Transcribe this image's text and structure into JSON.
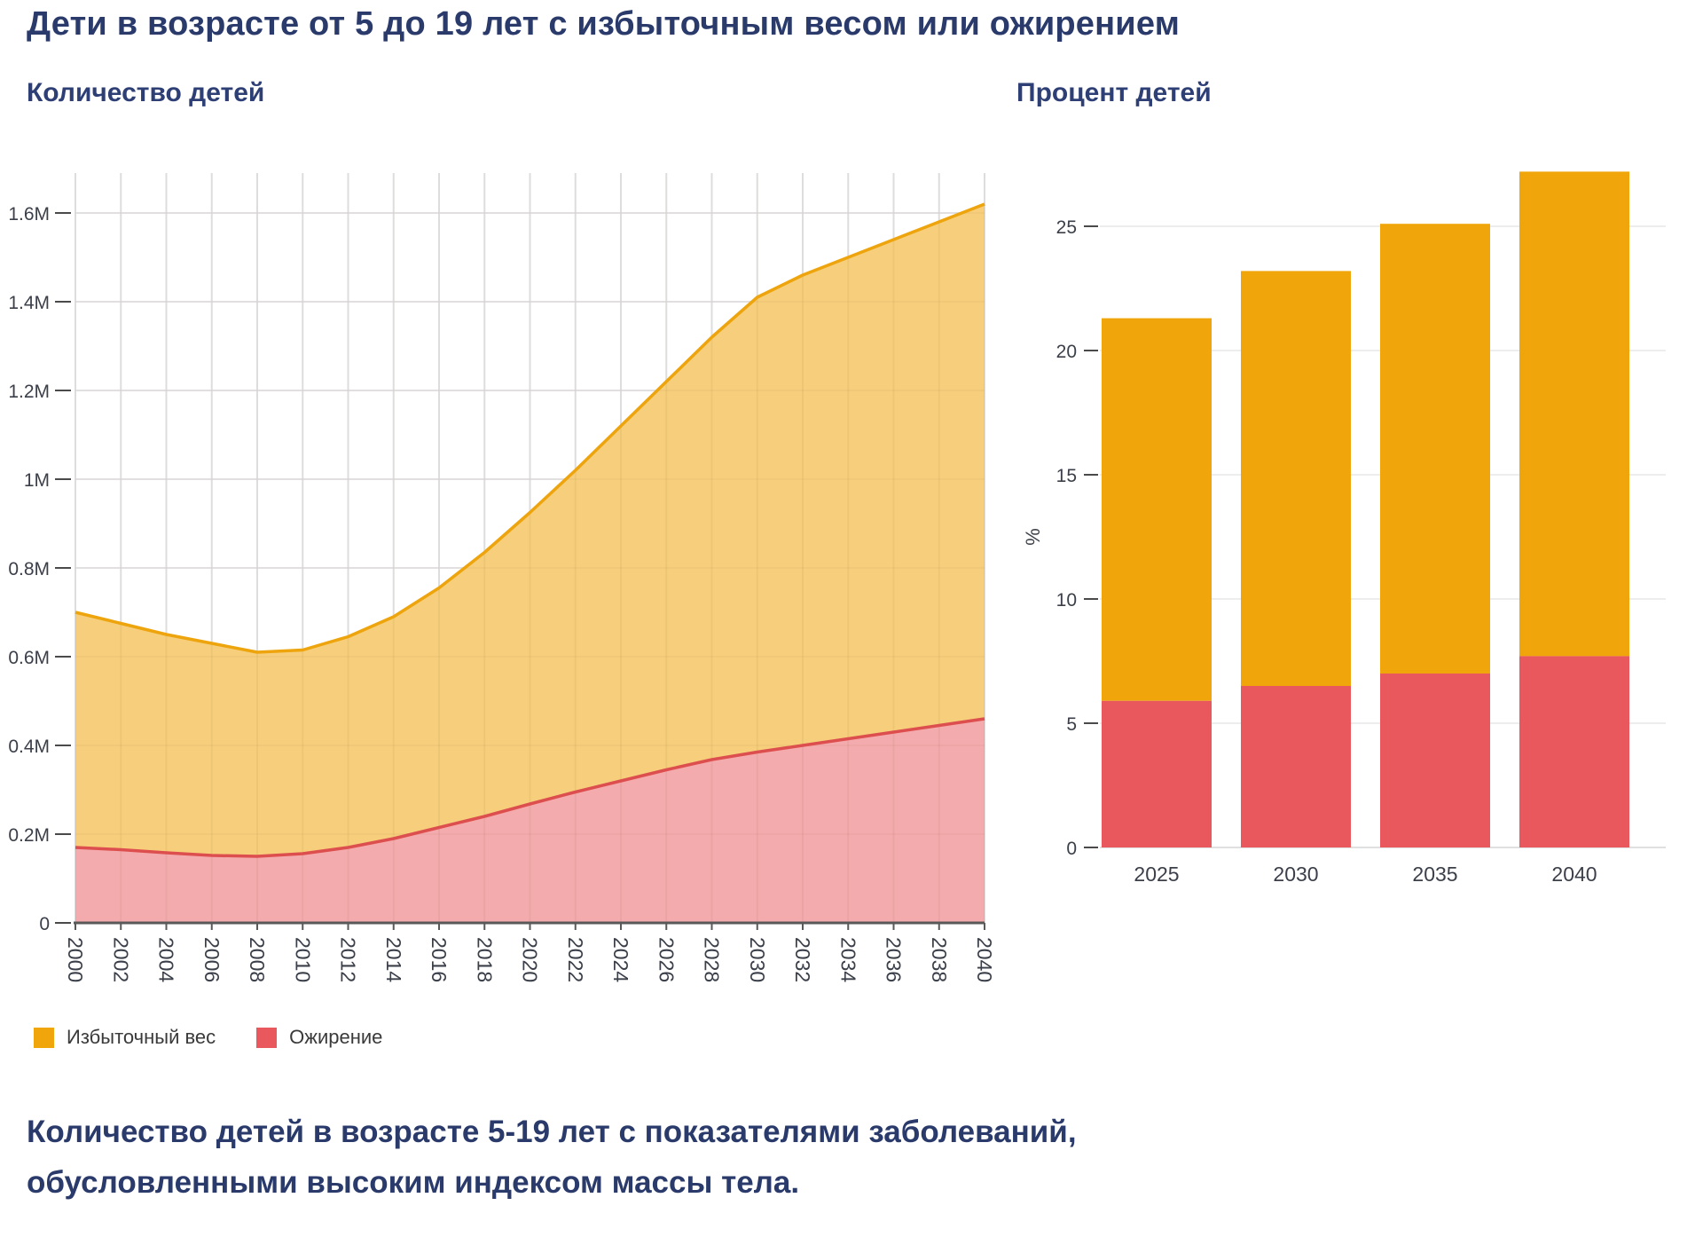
{
  "header": {
    "title": "Дети в возрасте от 5 до 19 лет с избыточным весом или ожирением"
  },
  "charts": {
    "left": {
      "subtitle": "Количество детей"
    },
    "right": {
      "subtitle": "Процент детей",
      "y_axis_label": "%"
    }
  },
  "legend": [
    {
      "label": "Избыточный вес",
      "color": "#F0A60A"
    },
    {
      "label": "Ожирение",
      "color": "#E8585C"
    }
  ],
  "caption": {
    "line1": "Количество детей в возрасте 5-19 лет с показателями заболеваний,",
    "line2": "обусловленными высоким индексом массы тела."
  },
  "chart_data": [
    {
      "type": "area",
      "title": "Количество детей",
      "stacked": true,
      "grid": true,
      "x": [
        2000,
        2002,
        2004,
        2006,
        2008,
        2010,
        2012,
        2014,
        2016,
        2018,
        2020,
        2022,
        2024,
        2026,
        2028,
        2030,
        2032,
        2034,
        2036,
        2038,
        2040
      ],
      "x_tick_labels": [
        "2000",
        "2002",
        "2004",
        "2006",
        "2008",
        "2010",
        "2012",
        "2014",
        "2016",
        "2018",
        "2020",
        "2022",
        "2024",
        "2026",
        "2028",
        "2030",
        "2032",
        "2034",
        "2036",
        "2038",
        "2040"
      ],
      "y_tick_values_millions": [
        0,
        0.2,
        0.4,
        0.6,
        0.8,
        1,
        1.2,
        1.4,
        1.6
      ],
      "y_tick_labels": [
        "0",
        "0.2M",
        "0.4M",
        "0.6M",
        "0.8M",
        "1M",
        "1.2M",
        "1.4M",
        "1.6M"
      ],
      "ylim_millions": [
        0,
        1.69
      ],
      "series": [
        {
          "name": "Ожирение",
          "color_line": "#DD4F4F",
          "color_fill": "#F4ABAD",
          "values_millions": [
            0.17,
            0.165,
            0.158,
            0.152,
            0.15,
            0.156,
            0.17,
            0.19,
            0.215,
            0.24,
            0.268,
            0.295,
            0.32,
            0.345,
            0.368,
            0.385,
            0.4,
            0.415,
            0.43,
            0.445,
            0.46
          ]
        },
        {
          "name": "Избыточный вес",
          "color_line": "#EDA40D",
          "color_fill": "#F7CF7C",
          "values_millions": [
            0.53,
            0.51,
            0.492,
            0.478,
            0.46,
            0.459,
            0.475,
            0.5,
            0.54,
            0.595,
            0.657,
            0.725,
            0.8,
            0.875,
            0.952,
            1.025,
            1.06,
            1.085,
            1.11,
            1.135,
            1.16
          ]
        }
      ],
      "stack_totals_millions": [
        0.7,
        0.675,
        0.65,
        0.63,
        0.61,
        0.615,
        0.645,
        0.69,
        0.755,
        0.835,
        0.925,
        1.02,
        1.12,
        1.22,
        1.32,
        1.41,
        1.46,
        1.5,
        1.54,
        1.58,
        1.62
      ]
    },
    {
      "type": "bar",
      "title": "Процент детей",
      "stacked": true,
      "grid": true,
      "categories": [
        "2025",
        "2030",
        "2035",
        "2040"
      ],
      "series": [
        {
          "name": "Ожирение",
          "color": "#E8585C",
          "values_percent": [
            5.9,
            6.5,
            7,
            7.7
          ]
        },
        {
          "name": "Избыточный вес",
          "color": "#F0A60A",
          "values_percent": [
            15.4,
            16.7,
            18.1,
            19.5
          ]
        }
      ],
      "stack_totals_percent": [
        21.3,
        23.2,
        25.1,
        27.2
      ],
      "ylabel": "%",
      "y_tick_values": [
        0,
        5,
        10,
        15,
        20,
        25
      ],
      "ylim": [
        0,
        27.5
      ]
    }
  ]
}
